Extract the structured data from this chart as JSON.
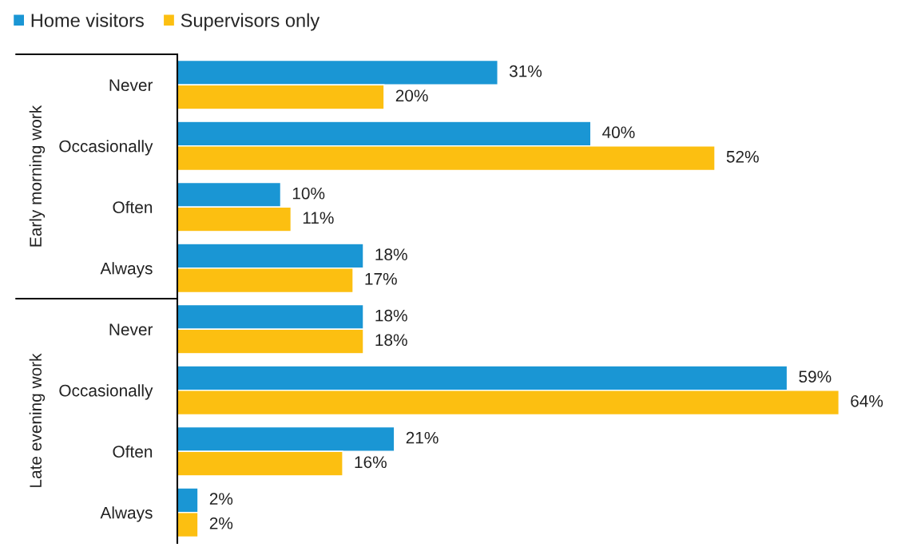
{
  "chart_data": {
    "type": "bar",
    "orientation": "horizontal",
    "categories": [
      "Never",
      "Occasionally",
      "Often",
      "Always",
      "Never",
      "Occasionally",
      "Often",
      "Always"
    ],
    "series": [
      {
        "name": "Home visitors",
        "color": "#1a96d4",
        "values": [
          31,
          40,
          10,
          18,
          18,
          59,
          21,
          2
        ],
        "value_labels": [
          "31%",
          "40%",
          "10%",
          "18%",
          "18%",
          "59%",
          "21%",
          "2%"
        ]
      },
      {
        "name": "Supervisors only",
        "color": "#fcbf11",
        "values": [
          20,
          52,
          11,
          17,
          18,
          64,
          16,
          2
        ],
        "value_labels": [
          "20%",
          "52%",
          "11%",
          "17%",
          "18%",
          "64%",
          "16%",
          "2%"
        ]
      }
    ],
    "annotations": [
      "Early morning work",
      "Late evening work"
    ],
    "tick_labels": "y",
    "grid": false,
    "legend": "top left"
  }
}
